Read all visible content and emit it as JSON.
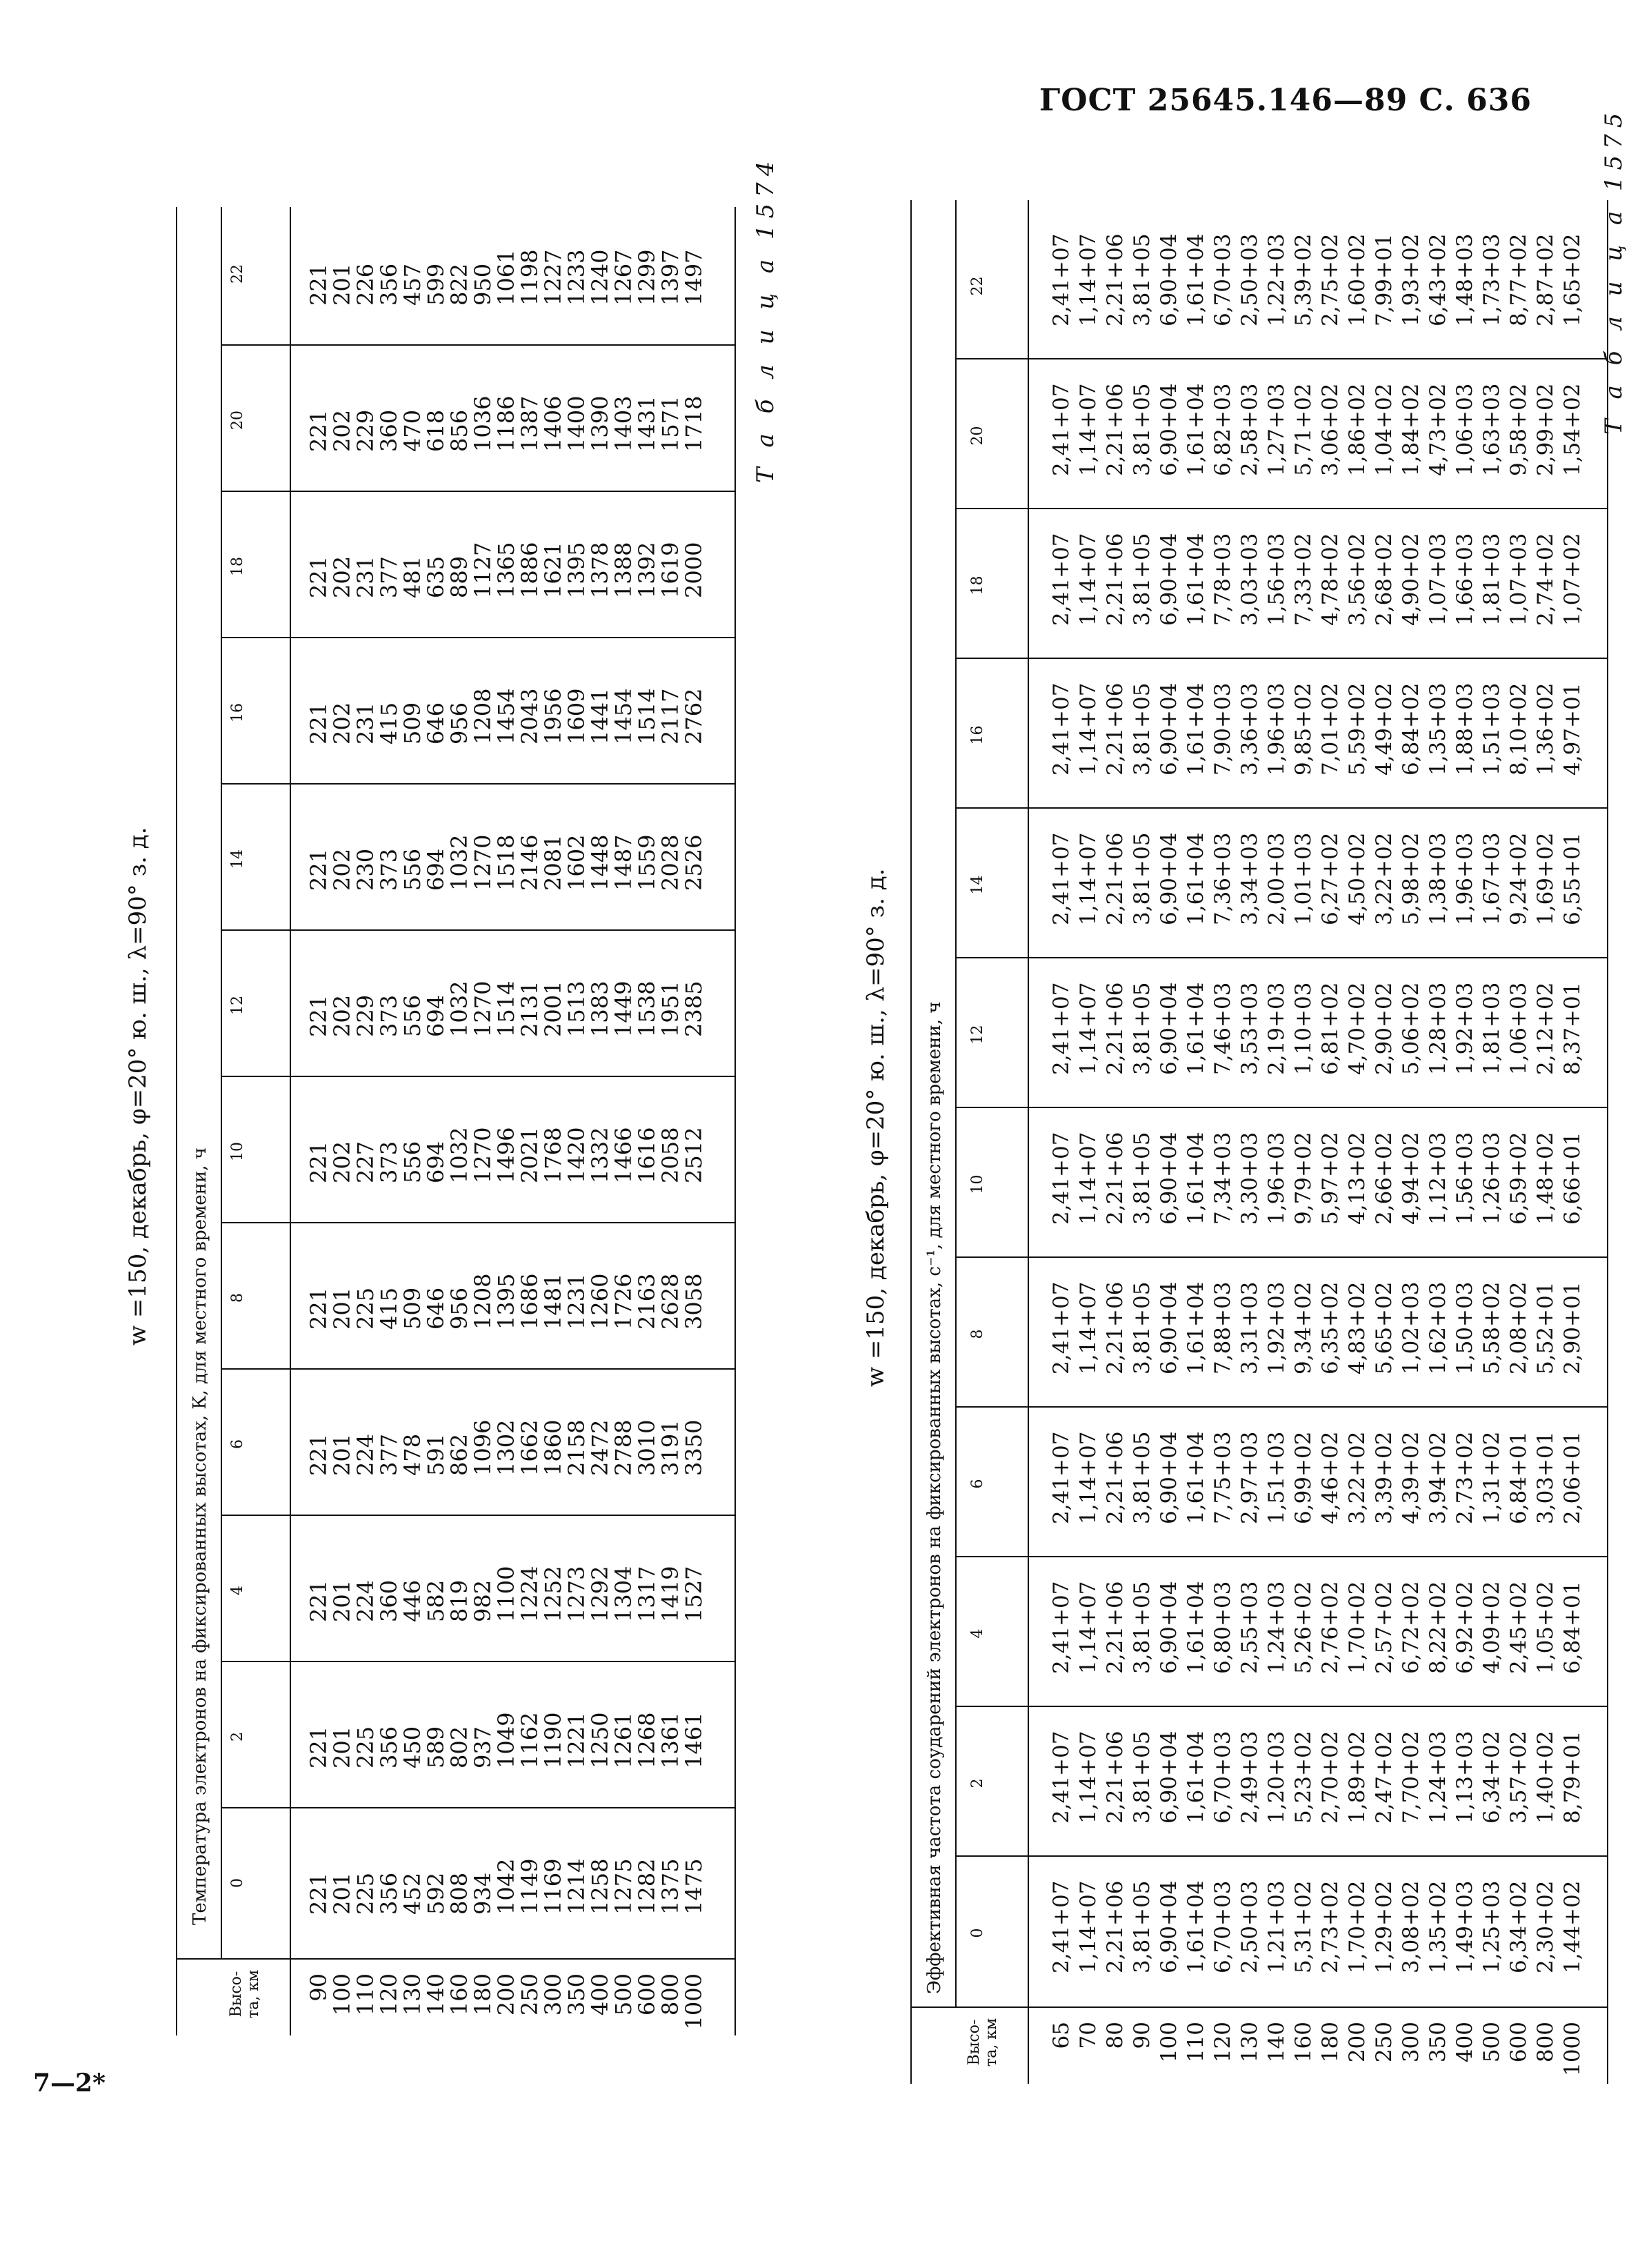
{
  "header": {
    "gost": "ГОСТ 25645.146—89 С. 636"
  },
  "footer": {
    "page_mark": "7—2*"
  },
  "table1574": {
    "number": "Т а б л и ц а   1574",
    "title": "w =150, декабрь, φ=20° ю. ш., λ=90° з. д.",
    "subheader": "Температура электронов на фиксированных высотах, К, для местного времени, ч",
    "alt_header": "Высо-\nта, км",
    "hours": [
      "0",
      "2",
      "4",
      "6",
      "8",
      "10",
      "12",
      "14",
      "16",
      "18",
      "20",
      "22"
    ],
    "altitudes": [
      "90",
      "100",
      "110",
      "120",
      "130",
      "140",
      "160",
      "180",
      "200",
      "250",
      "300",
      "350",
      "400",
      "500",
      "600",
      "800",
      "1000"
    ],
    "columns": [
      [
        "221",
        "201",
        "225",
        "356",
        "452",
        "592",
        "808",
        "934",
        "1042",
        "1149",
        "1169",
        "1214",
        "1258",
        "1275",
        "1282",
        "1375",
        "1475"
      ],
      [
        "221",
        "201",
        "225",
        "356",
        "450",
        "589",
        "802",
        "937",
        "1049",
        "1162",
        "1190",
        "1221",
        "1250",
        "1261",
        "1268",
        "1361",
        "1461"
      ],
      [
        "221",
        "201",
        "224",
        "360",
        "446",
        "582",
        "819",
        "982",
        "1100",
        "1224",
        "1252",
        "1273",
        "1292",
        "1304",
        "1317",
        "1419",
        "1527"
      ],
      [
        "221",
        "201",
        "224",
        "377",
        "478",
        "591",
        "862",
        "1096",
        "1302",
        "1662",
        "1860",
        "2158",
        "2472",
        "2788",
        "3010",
        "3191",
        "3350"
      ],
      [
        "221",
        "201",
        "225",
        "415",
        "509",
        "646",
        "956",
        "1208",
        "1395",
        "1686",
        "1481",
        "1231",
        "1260",
        "1726",
        "2163",
        "2628",
        "3058"
      ],
      [
        "221",
        "202",
        "227",
        "373",
        "556",
        "694",
        "1032",
        "1270",
        "1496",
        "2021",
        "1768",
        "1420",
        "1332",
        "1466",
        "1616",
        "2058",
        "2512"
      ],
      [
        "221",
        "202",
        "229",
        "373",
        "556",
        "694",
        "1032",
        "1270",
        "1514",
        "2131",
        "2001",
        "1513",
        "1383",
        "1449",
        "1538",
        "1951",
        "2385"
      ],
      [
        "221",
        "202",
        "230",
        "373",
        "556",
        "694",
        "1032",
        "1270",
        "1518",
        "2146",
        "2081",
        "1602",
        "1448",
        "1487",
        "1559",
        "2028",
        "2526"
      ],
      [
        "221",
        "202",
        "231",
        "415",
        "509",
        "646",
        "956",
        "1208",
        "1454",
        "2043",
        "1956",
        "1609",
        "1441",
        "1454",
        "1514",
        "2117",
        "2762"
      ],
      [
        "221",
        "202",
        "231",
        "377",
        "481",
        "635",
        "889",
        "1127",
        "1365",
        "1886",
        "1621",
        "1395",
        "1378",
        "1388",
        "1392",
        "1619",
        "2000"
      ],
      [
        "221",
        "202",
        "229",
        "360",
        "470",
        "618",
        "856",
        "1036",
        "1186",
        "1387",
        "1406",
        "1400",
        "1390",
        "1403",
        "1431",
        "1571",
        "1718"
      ],
      [
        "221",
        "201",
        "226",
        "356",
        "457",
        "599",
        "822",
        "950",
        "1061",
        "1198",
        "1227",
        "1233",
        "1240",
        "1267",
        "1299",
        "1397",
        "1497"
      ]
    ]
  },
  "table1575": {
    "number": "Т а б л и ц а   1575",
    "title": "w =150, декабрь, φ=20° ю. ш., λ=90° з. д.",
    "subheader": "Эффективная частота соударений электронов на фиксированных высотах, с⁻¹, для местного времени, ч",
    "alt_header": "Высо-\nта, км",
    "hours": [
      "0",
      "2",
      "4",
      "6",
      "8",
      "10",
      "12",
      "14",
      "16",
      "18",
      "20",
      "22"
    ],
    "altitudes": [
      "65",
      "70",
      "80",
      "90",
      "100",
      "110",
      "120",
      "130",
      "140",
      "160",
      "180",
      "200",
      "250",
      "300",
      "350",
      "400",
      "500",
      "600",
      "800",
      "1000"
    ],
    "columns": [
      [
        "2,41+07",
        "1,14+07",
        "2,21+06",
        "3,81+05",
        "6,90+04",
        "1,61+04",
        "6,70+03",
        "2,50+03",
        "1,21+03",
        "5,31+02",
        "2,73+02",
        "1,70+02",
        "1,29+02",
        "3,08+02",
        "1,35+02",
        "1,49+03",
        "1,25+03",
        "6,34+02",
        "2,30+02",
        "1,44+02"
      ],
      [
        "2,41+07",
        "1,14+07",
        "2,21+06",
        "3,81+05",
        "6,90+04",
        "1,61+04",
        "6,70+03",
        "2,49+03",
        "1,20+03",
        "5,23+02",
        "2,70+02",
        "1,89+02",
        "2,47+02",
        "7,70+02",
        "1,24+03",
        "1,13+03",
        "6,34+02",
        "3,57+02",
        "1,40+02",
        "8,79+01"
      ],
      [
        "2,41+07",
        "1,14+07",
        "2,21+06",
        "3,81+05",
        "6,90+04",
        "1,61+04",
        "6,80+03",
        "2,55+03",
        "1,24+03",
        "5,26+02",
        "2,76+02",
        "1,70+02",
        "2,57+02",
        "6,72+02",
        "8,22+02",
        "6,92+02",
        "4,09+02",
        "2,45+02",
        "1,05+02",
        "6,84+01"
      ],
      [
        "2,41+07",
        "1,14+07",
        "2,21+06",
        "3,81+05",
        "6,90+04",
        "1,61+04",
        "7,75+03",
        "2,97+03",
        "1,51+03",
        "6,99+02",
        "4,46+02",
        "3,22+02",
        "3,39+02",
        "4,39+02",
        "3,94+02",
        "2,73+02",
        "1,31+02",
        "6,84+01",
        "3,03+01",
        "2,06+01"
      ],
      [
        "2,41+07",
        "1,14+07",
        "2,21+06",
        "3,81+05",
        "6,90+04",
        "1,61+04",
        "7,88+03",
        "3,31+03",
        "1,92+03",
        "9,34+02",
        "6,35+02",
        "4,83+02",
        "5,65+02",
        "1,02+03",
        "1,62+03",
        "1,50+03",
        "5,58+02",
        "2,08+02",
        "5,52+01",
        "2,90+01"
      ],
      [
        "2,41+07",
        "1,14+07",
        "2,21+06",
        "3,81+05",
        "6,90+04",
        "1,61+04",
        "7,34+03",
        "3,30+03",
        "1,96+03",
        "9,79+02",
        "5,97+02",
        "4,13+02",
        "2,66+02",
        "4,94+02",
        "1,12+03",
        "1,56+03",
        "1,26+03",
        "6,59+02",
        "1,48+02",
        "6,66+01"
      ],
      [
        "2,41+07",
        "1,14+07",
        "2,21+06",
        "3,81+05",
        "6,90+04",
        "1,61+04",
        "7,46+03",
        "3,53+03",
        "2,19+03",
        "1,10+03",
        "6,81+02",
        "4,70+02",
        "2,90+02",
        "5,06+02",
        "1,28+03",
        "1,92+03",
        "1,81+03",
        "1,06+03",
        "2,12+02",
        "8,37+01"
      ],
      [
        "2,41+07",
        "1,14+07",
        "2,21+06",
        "3,81+05",
        "6,90+04",
        "1,61+04",
        "7,36+03",
        "3,34+03",
        "2,00+03",
        "1,01+03",
        "6,27+02",
        "4,50+02",
        "3,22+02",
        "5,98+02",
        "1,38+03",
        "1,96+03",
        "1,67+03",
        "9,24+02",
        "1,69+02",
        "6,55+01"
      ],
      [
        "2,41+07",
        "1,14+07",
        "2,21+06",
        "3,81+05",
        "6,90+04",
        "1,61+04",
        "7,90+03",
        "3,36+03",
        "1,96+03",
        "9,85+02",
        "7,01+02",
        "5,59+02",
        "4,49+02",
        "6,84+02",
        "1,35+03",
        "1,88+03",
        "1,51+03",
        "8,10+02",
        "1,36+02",
        "4,97+01"
      ],
      [
        "2,41+07",
        "1,14+07",
        "2,21+06",
        "3,81+05",
        "6,90+04",
        "1,61+04",
        "7,78+03",
        "3,03+03",
        "1,56+03",
        "7,33+02",
        "4,78+02",
        "3,56+02",
        "2,68+02",
        "4,90+02",
        "1,07+03",
        "1,66+03",
        "1,81+03",
        "1,07+03",
        "2,74+02",
        "1,07+02"
      ],
      [
        "2,41+07",
        "1,14+07",
        "2,21+06",
        "3,81+05",
        "6,90+04",
        "1,61+04",
        "6,82+03",
        "2,58+03",
        "1,27+03",
        "5,71+02",
        "3,06+02",
        "1,86+02",
        "1,04+02",
        "1,84+02",
        "4,73+02",
        "1,06+03",
        "1,63+03",
        "9,58+02",
        "2,99+02",
        "1,54+02"
      ],
      [
        "2,41+07",
        "1,14+07",
        "2,21+06",
        "3,81+05",
        "6,90+04",
        "1,61+04",
        "6,70+03",
        "2,50+03",
        "1,22+03",
        "5,39+02",
        "2,75+02",
        "1,60+02",
        "7,99+01",
        "1,93+02",
        "6,43+02",
        "1,48+03",
        "1,73+03",
        "8,77+02",
        "2,87+02",
        "1,65+02"
      ]
    ]
  }
}
